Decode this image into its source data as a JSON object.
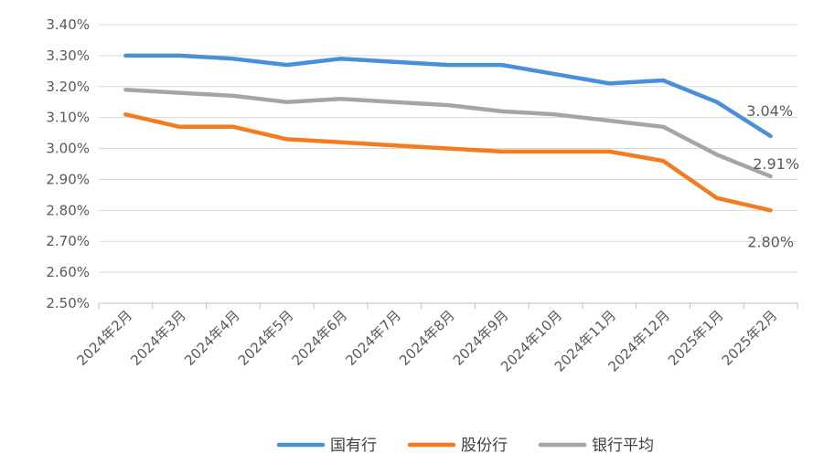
{
  "chart_data": {
    "type": "line",
    "title": "",
    "xlabel": "",
    "ylabel": "",
    "categories": [
      "2024年2月",
      "2024年3月",
      "2024年4月",
      "2024年5月",
      "2024年6月",
      "2024年7月",
      "2024年8月",
      "2024年9月",
      "2024年10月",
      "2024年11月",
      "2024年12月",
      "2025年1月",
      "2025年2月"
    ],
    "ylim": [
      2.5,
      3.4
    ],
    "yticks": [
      2.5,
      2.6,
      2.7,
      2.8,
      2.9,
      3.0,
      3.1,
      3.2,
      3.3,
      3.4
    ],
    "ytick_labels": [
      "2.50%",
      "2.60%",
      "2.70%",
      "2.80%",
      "2.90%",
      "3.00%",
      "3.10%",
      "3.20%",
      "3.30%",
      "3.40%"
    ],
    "grid": true,
    "legend_position": "bottom",
    "series": [
      {
        "name": "国有行",
        "color": "#4A90D9",
        "values": [
          3.3,
          3.3,
          3.29,
          3.27,
          3.29,
          3.28,
          3.27,
          3.27,
          3.24,
          3.21,
          3.22,
          3.15,
          3.04
        ]
      },
      {
        "name": "股份行",
        "color": "#F57C1E",
        "values": [
          3.11,
          3.07,
          3.07,
          3.03,
          3.02,
          3.01,
          3.0,
          2.99,
          2.99,
          2.99,
          2.96,
          2.84,
          2.8
        ]
      },
      {
        "name": "银行平均",
        "color": "#A5A5A5",
        "values": [
          3.19,
          3.18,
          3.17,
          3.15,
          3.16,
          3.15,
          3.14,
          3.12,
          3.11,
          3.09,
          3.07,
          2.98,
          2.91
        ]
      }
    ],
    "annotations": [
      {
        "series": 0,
        "index": 12,
        "text": "3.04%",
        "placement": "above-left"
      },
      {
        "series": 2,
        "index": 12,
        "text": "2.91%",
        "placement": "above"
      },
      {
        "series": 1,
        "index": 12,
        "text": "2.80%",
        "placement": "below"
      }
    ]
  }
}
